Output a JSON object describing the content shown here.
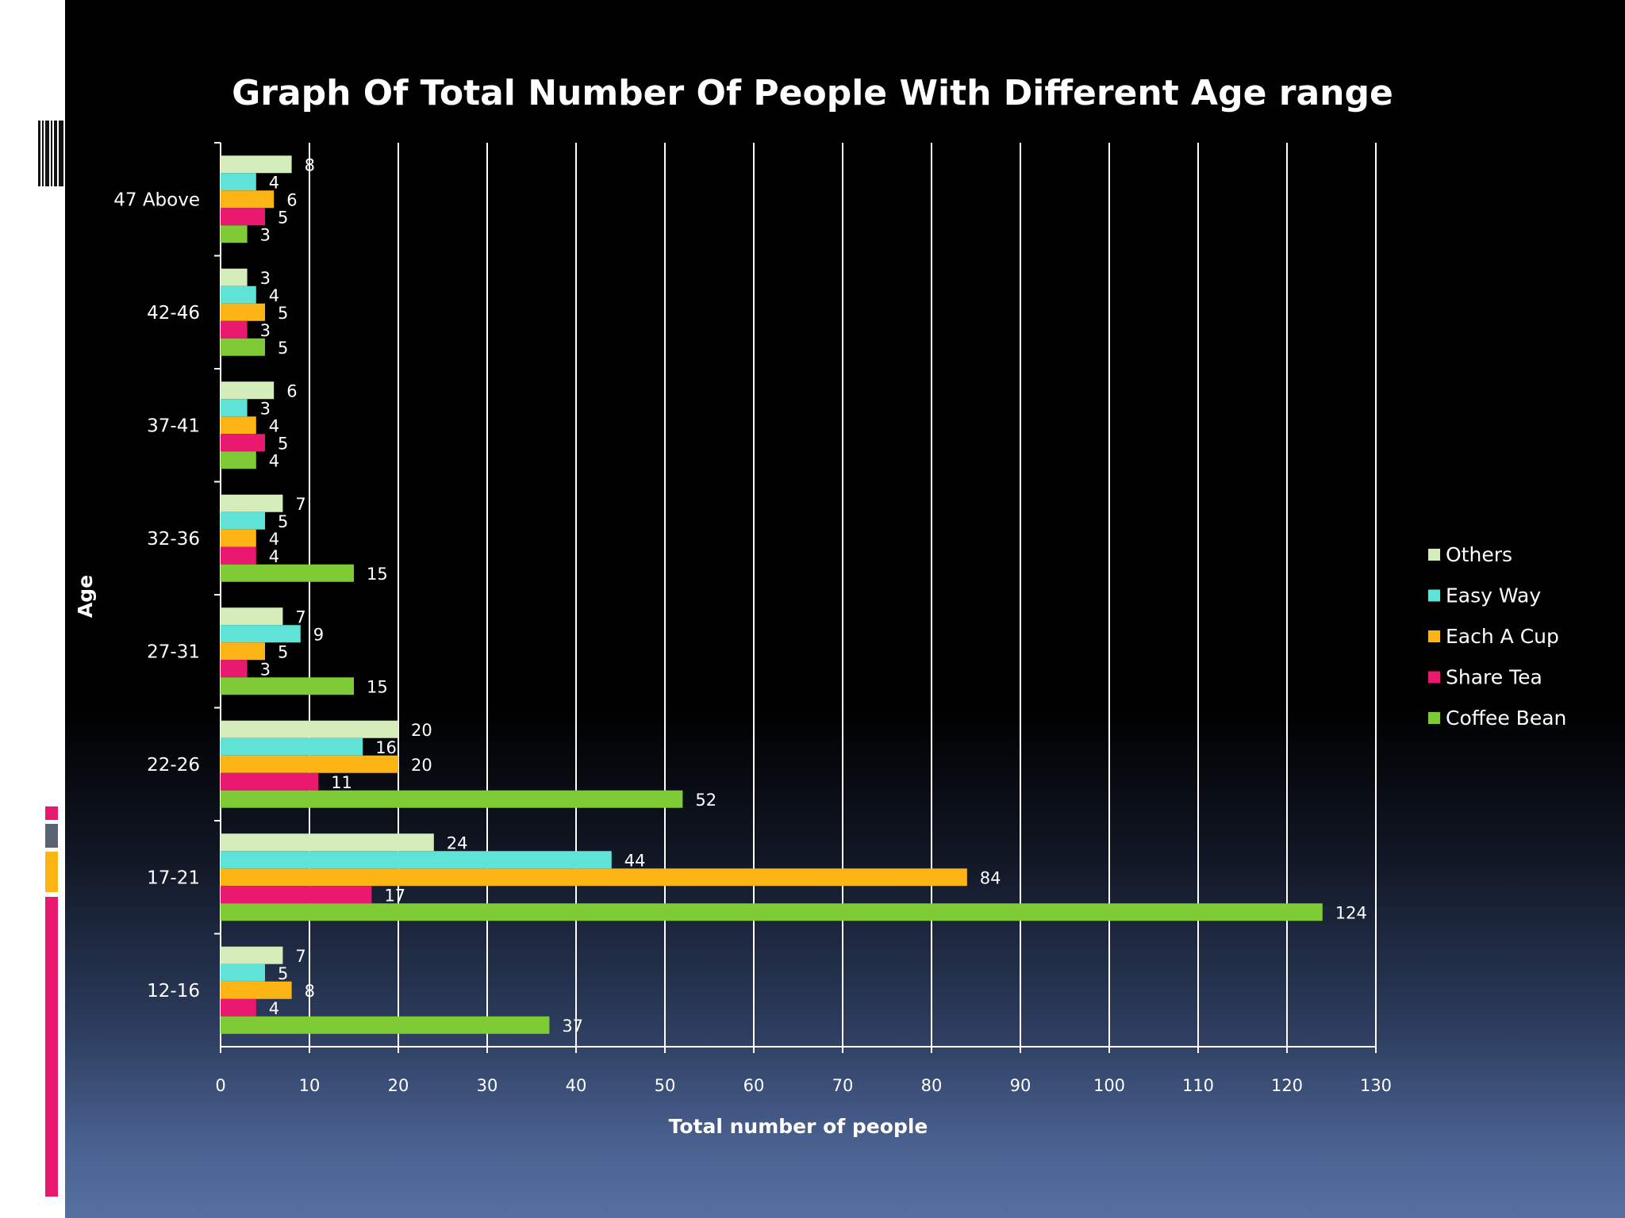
{
  "chart_data": {
    "type": "bar",
    "orientation": "horizontal",
    "title": "Graph Of Total  Number Of People With Different Age range",
    "xlabel": "Total number of people",
    "ylabel": "Age",
    "xlim": [
      0,
      130
    ],
    "xticks": [
      "0",
      "10",
      "20",
      "30",
      "40",
      "50",
      "60",
      "70",
      "80",
      "90",
      "100",
      "110",
      "120",
      "130"
    ],
    "categories": [
      "12-16",
      "17-21",
      "22-26",
      "27-31",
      "32-36",
      "37-41",
      "42-46",
      "47 Above"
    ],
    "series": [
      {
        "name": "Coffee Bean",
        "color": "#7ecb35",
        "values": [
          37,
          124,
          52,
          15,
          15,
          4,
          5,
          3
        ]
      },
      {
        "name": "Share Tea",
        "color": "#e8196f",
        "values": [
          4,
          17,
          11,
          3,
          4,
          5,
          3,
          5
        ]
      },
      {
        "name": "Each A Cup",
        "color": "#fdb515",
        "values": [
          8,
          84,
          20,
          5,
          4,
          4,
          5,
          6
        ]
      },
      {
        "name": "Easy Way",
        "color": "#5fe3d6",
        "values": [
          5,
          44,
          16,
          9,
          5,
          3,
          4,
          4
        ]
      },
      {
        "name": "Others",
        "color": "#d5edbb",
        "values": [
          7,
          24,
          20,
          7,
          7,
          6,
          3,
          8
        ]
      }
    ],
    "legend": [
      "Others",
      "Easy Way",
      "Each A Cup",
      "Share Tea",
      "Coffee Bean"
    ],
    "legend_position": "right",
    "grid": true
  },
  "colors": {
    "grid": "#ffffff",
    "text": "#ffffff",
    "accent_pink": "#e8196f",
    "accent_gray": "#5a6372",
    "accent_yellow": "#fdb515"
  }
}
